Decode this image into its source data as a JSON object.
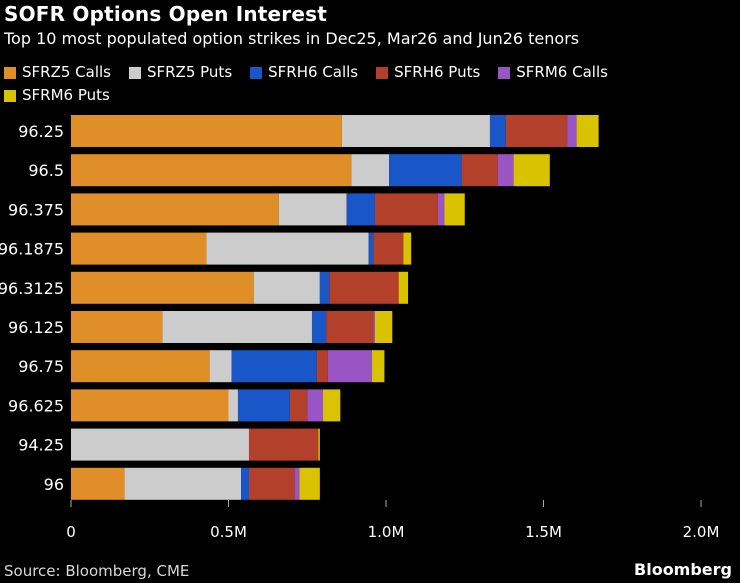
{
  "title": "SOFR Options Open Interest",
  "subtitle": "Top 10 most populated option strikes in Dec25, Mar26 and Jun26 tenors",
  "source": "Source: Bloomberg, CME",
  "brand": "Bloomberg",
  "chart_data": {
    "type": "bar",
    "orientation": "horizontal",
    "stacked": true,
    "title": "SOFR Options Open Interest",
    "categories": [
      "96.25",
      "96.5",
      "96.375",
      "96.1875",
      "96.3125",
      "96.125",
      "96.75",
      "96.625",
      "94.25",
      "96"
    ],
    "series": [
      {
        "name": "SFRZ5 Calls",
        "color": "#e08e28",
        "values": [
          860000,
          890000,
          660000,
          430000,
          580000,
          290000,
          440000,
          500000,
          0,
          170000
        ]
      },
      {
        "name": "SFRZ5 Puts",
        "color": "#cccccc",
        "values": [
          470000,
          120000,
          215000,
          515000,
          210000,
          475000,
          70000,
          30000,
          565000,
          370000
        ]
      },
      {
        "name": "SFRH6 Calls",
        "color": "#1957c8",
        "values": [
          50000,
          230000,
          90000,
          15000,
          30000,
          45000,
          270000,
          165000,
          0,
          25000
        ]
      },
      {
        "name": "SFRH6 Puts",
        "color": "#b2402a",
        "values": [
          195000,
          115000,
          200000,
          95000,
          220000,
          150000,
          35000,
          55000,
          220000,
          145000
        ]
      },
      {
        "name": "SFRM6 Calls",
        "color": "#9a55c4",
        "values": [
          30000,
          50000,
          20000,
          0,
          0,
          5000,
          140000,
          50000,
          0,
          15000
        ]
      },
      {
        "name": "SFRM6 Puts",
        "color": "#d9c300",
        "values": [
          70000,
          115000,
          65000,
          25000,
          30000,
          55000,
          40000,
          55000,
          5000,
          65000
        ]
      }
    ],
    "xlim": [
      0,
      2000000
    ],
    "xticks": [
      {
        "value": 0,
        "label": "0"
      },
      {
        "value": 500000,
        "label": "0.5M"
      },
      {
        "value": 1000000,
        "label": "1.0M"
      },
      {
        "value": 1500000,
        "label": "1.5M"
      },
      {
        "value": 2000000,
        "label": "2.0M"
      }
    ],
    "xlabel": "",
    "ylabel": "",
    "legend_position": "top-left",
    "grid": false
  }
}
